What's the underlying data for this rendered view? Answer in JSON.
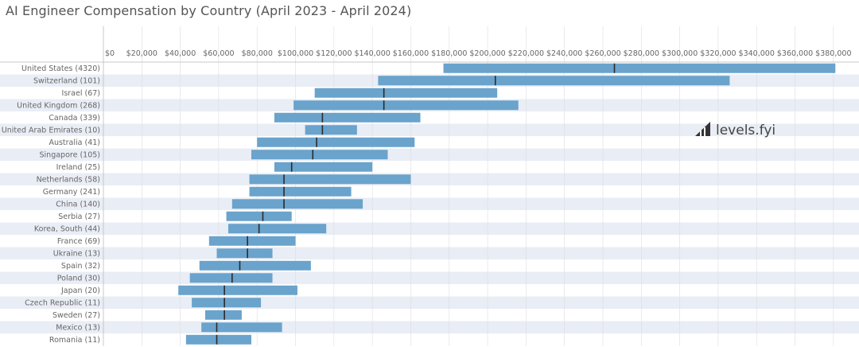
{
  "title": "AI Engineer Compensation by Country (April 2023 - April 2024)",
  "logo_text": "levels.fyi",
  "colors": {
    "bar": "#6aa3cc",
    "median": "#2b2b2b",
    "band": "#e9edf5",
    "grid": "#dddddd",
    "text": "#666666"
  },
  "chart_data": {
    "type": "bar",
    "orientation": "horizontal",
    "variant": "range-with-median",
    "xlim": [
      0,
      390000
    ],
    "x_ticks": [
      0,
      20000,
      40000,
      60000,
      80000,
      100000,
      120000,
      140000,
      160000,
      180000,
      200000,
      220000,
      240000,
      260000,
      280000,
      300000,
      320000,
      340000,
      360000,
      380000
    ],
    "x_tick_labels": [
      "$0",
      "$20,000",
      "$40,000",
      "$60,000",
      "$80,000",
      "$100,000",
      "$120,000",
      "$140,000",
      "$160,000",
      "$180,000",
      "$200,000",
      "$220,000",
      "$240,000",
      "$260,000",
      "$280,000",
      "$300,000",
      "$320,000",
      "$340,000",
      "$360,000",
      "$380,000"
    ],
    "categories": [
      "United States (4320)",
      "Switzerland (101)",
      "Israel (67)",
      "United Kingdom (268)",
      "Canada (339)",
      "United Arab Emirates (10)",
      "Australia (41)",
      "Singapore (105)",
      "Ireland (25)",
      "Netherlands (58)",
      "Germany (241)",
      "China (140)",
      "Serbia (27)",
      "Korea, South (44)",
      "France (69)",
      "Ukraine (13)",
      "Spain (32)",
      "Poland (30)",
      "Japan (20)",
      "Czech Republic (11)",
      "Sweden (27)",
      "Mexico (13)",
      "Romania (11)"
    ],
    "low": [
      177000,
      143000,
      110000,
      99000,
      89000,
      105000,
      80000,
      77000,
      89000,
      76000,
      76000,
      67000,
      64000,
      65000,
      55000,
      59000,
      50000,
      45000,
      39000,
      46000,
      53000,
      51000,
      43000
    ],
    "median": [
      266000,
      204000,
      146000,
      146000,
      114000,
      114000,
      111000,
      109000,
      98000,
      94000,
      94000,
      94000,
      83000,
      81000,
      75000,
      75000,
      71000,
      67000,
      63000,
      63000,
      63000,
      59000,
      59000
    ],
    "high": [
      381000,
      326000,
      205000,
      216000,
      165000,
      132000,
      162000,
      148000,
      140000,
      160000,
      129000,
      135000,
      98000,
      116000,
      100000,
      88000,
      108000,
      88000,
      101000,
      82000,
      72000,
      93000,
      77000
    ]
  }
}
